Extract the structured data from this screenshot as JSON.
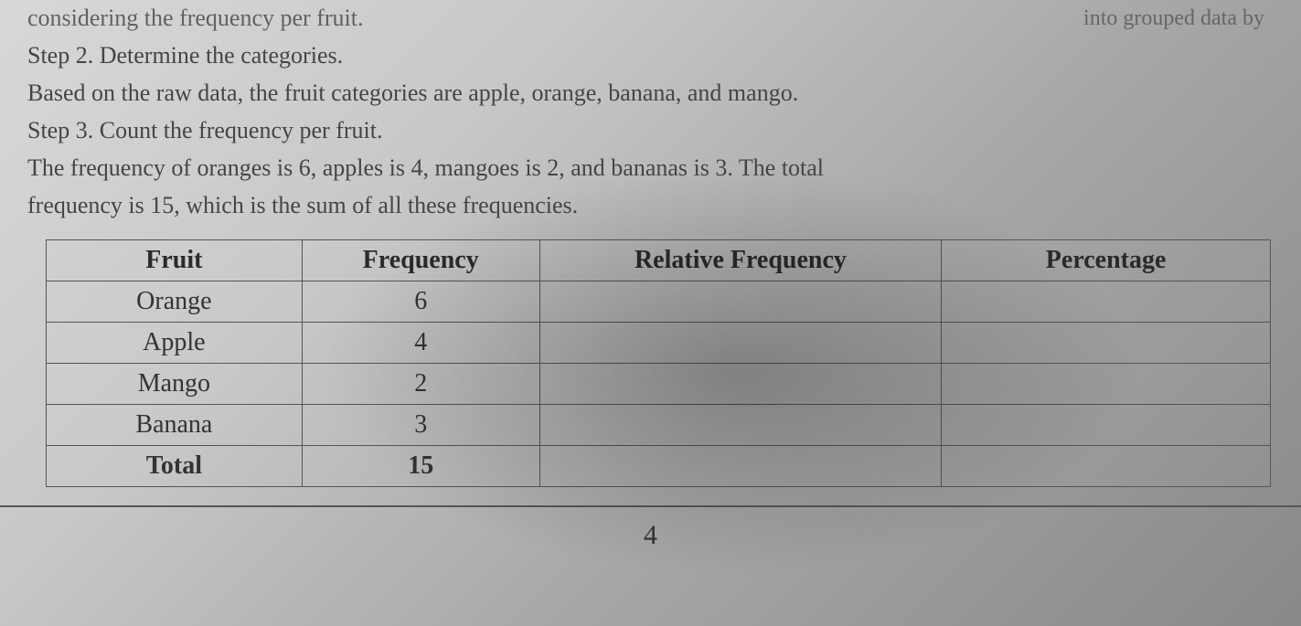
{
  "fragments": {
    "topLeft": "considering the frequency per fruit.",
    "topRight": "into grouped data by"
  },
  "paragraphs": {
    "step2": "Step 2. Determine the categories.",
    "based": "Based on the raw data, the fruit categories are apple, orange, banana, and mango.",
    "step3": "Step 3. Count the frequency per fruit.",
    "freqLine": "The frequency of oranges is 6, apples is 4, mangoes is 2, and bananas is 3. The total",
    "freqLine2": "frequency is 15, which is the sum of all these frequencies."
  },
  "table": {
    "headers": {
      "fruit": "Fruit",
      "frequency": "Frequency",
      "relative": "Relative Frequency",
      "percentage": "Percentage"
    },
    "rows": [
      {
        "fruit": "Orange",
        "frequency": "6",
        "relative": "",
        "percentage": ""
      },
      {
        "fruit": "Apple",
        "frequency": "4",
        "relative": "",
        "percentage": ""
      },
      {
        "fruit": "Mango",
        "frequency": "2",
        "relative": "",
        "percentage": ""
      },
      {
        "fruit": "Banana",
        "frequency": "3",
        "relative": "",
        "percentage": ""
      }
    ],
    "total": {
      "fruit": "Total",
      "frequency": "15",
      "relative": "",
      "percentage": ""
    }
  },
  "pageNumber": "4",
  "style": {
    "font_family": "Times New Roman",
    "text_fontsize": 26,
    "table_fontsize": 28,
    "text_color": "#454545",
    "header_color": "#2a2a2a",
    "border_color": "#555555",
    "background_gradient": [
      "#d8d8d8",
      "#c8c8c8",
      "#a8a8a8",
      "#888888"
    ],
    "col_widths": {
      "fruit": 280,
      "frequency": 260,
      "relative": 440,
      "percentage": 360
    }
  }
}
